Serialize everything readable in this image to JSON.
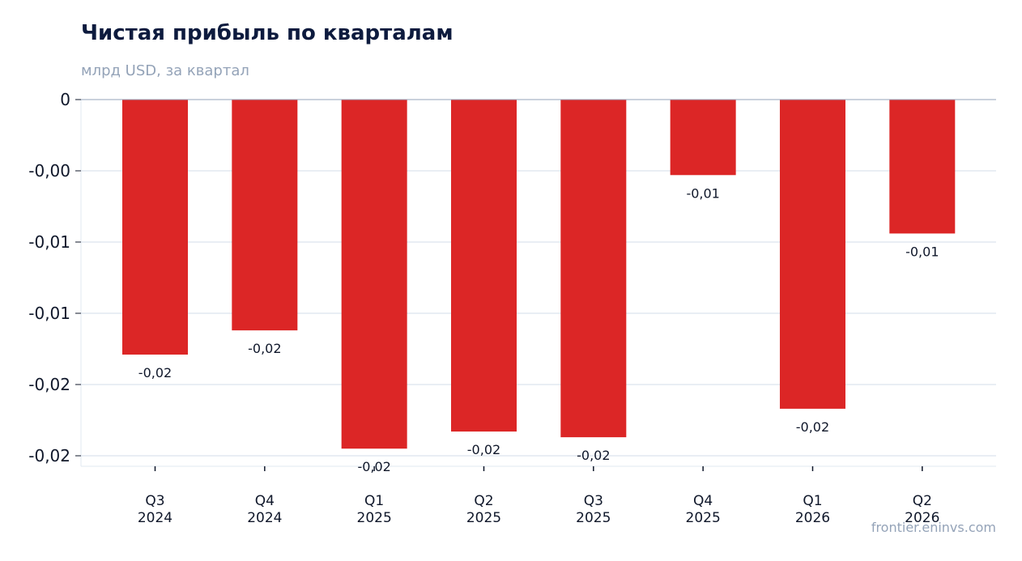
{
  "colors": {
    "bar": "#dc2626",
    "grid": "#e2e8f0",
    "axis": "#94a3b8",
    "title": "#0d1b3e",
    "tick_text": "#0f172a",
    "muted": "#94a3b8"
  },
  "chart_data": {
    "type": "bar",
    "title": "Чистая прибыль по кварталам",
    "subtitle": "млрд USD, за квартал",
    "xlabel": "",
    "ylabel": "",
    "categories": [
      [
        "Q3",
        "2024"
      ],
      [
        "Q4",
        "2024"
      ],
      [
        "Q1",
        "2025"
      ],
      [
        "Q2",
        "2025"
      ],
      [
        "Q3",
        "2025"
      ],
      [
        "Q4",
        "2025"
      ],
      [
        "Q1",
        "2026"
      ],
      [
        "Q2",
        "2026"
      ]
    ],
    "values": [
      -0.0179,
      -0.0162,
      -0.0245,
      -0.0233,
      -0.0237,
      -0.0053,
      -0.0217,
      -0.0094
    ],
    "data_labels": [
      "-0,02",
      "-0,02",
      "-0,02",
      "-0,02",
      "-0,02",
      "-0,01",
      "-0,02",
      "-0,01"
    ],
    "y_ticks": [
      {
        "value": 0,
        "label": "0"
      },
      {
        "value": -0.005,
        "label": "-0,00"
      },
      {
        "value": -0.01,
        "label": "-0,01"
      },
      {
        "value": -0.015,
        "label": "-0,01"
      },
      {
        "value": -0.02,
        "label": "-0,02"
      },
      {
        "value": -0.025,
        "label": "-0,02"
      }
    ],
    "ylim": [
      -0.0257,
      0
    ],
    "grid": true,
    "legend": "none"
  },
  "source": "frontier.eninvs.com"
}
